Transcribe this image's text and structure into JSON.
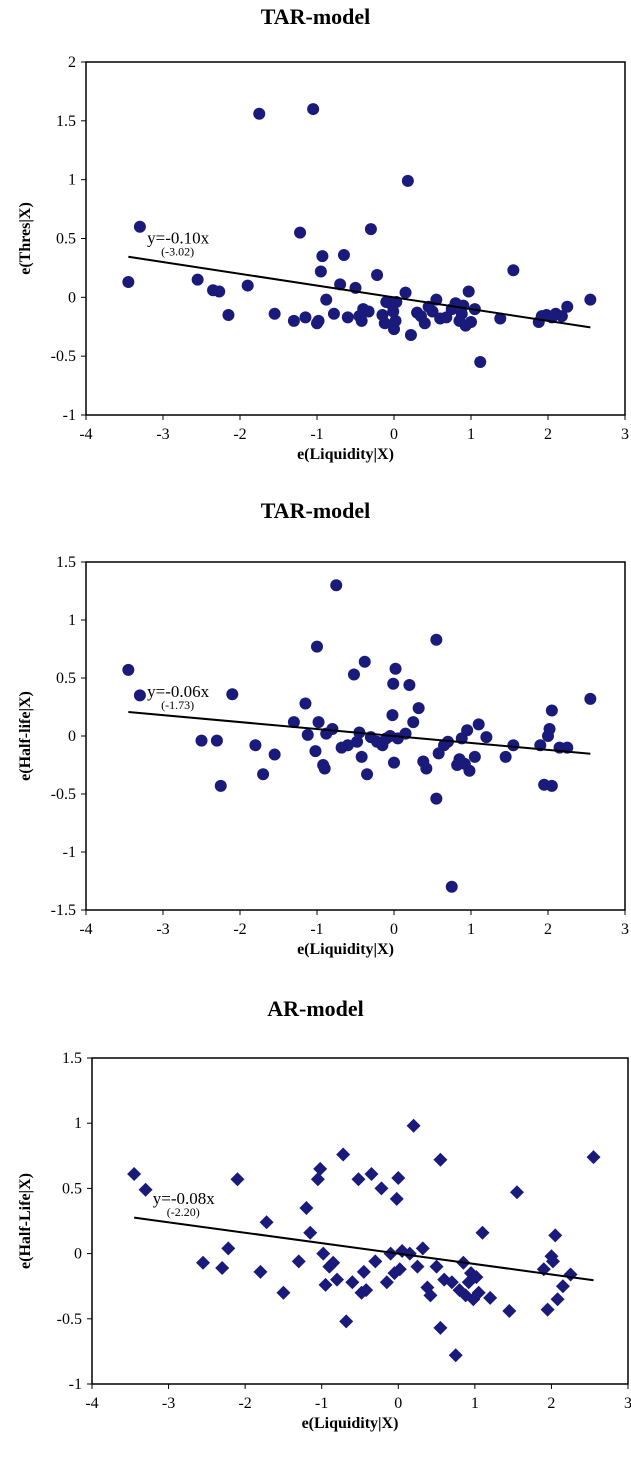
{
  "chart_data": [
    {
      "type": "scatter",
      "title": "TAR-model",
      "xlabel": "e(Liquidity|X)",
      "ylabel": "e(Thres|X)",
      "xlim": [
        -4,
        3
      ],
      "ylim": [
        -1,
        2
      ],
      "xticks": [
        "-4",
        "-3",
        "-2",
        "-1",
        "0",
        "1",
        "2",
        "3"
      ],
      "yticks": [
        "2",
        "1.5",
        "1",
        "0.5",
        "0",
        "-0.5",
        "-1"
      ],
      "marker": "circle",
      "marker_color": "#1a1a7a",
      "trendline": {
        "slope": -0.1,
        "x_from": -3.45,
        "x_to": 2.55,
        "equation": "y=-0.10x",
        "tstat": "(-3.02)"
      },
      "points": [
        [
          -3.45,
          0.13
        ],
        [
          -3.3,
          0.6
        ],
        [
          -2.55,
          0.15
        ],
        [
          -2.35,
          0.06
        ],
        [
          -2.27,
          0.05
        ],
        [
          -2.15,
          -0.15
        ],
        [
          -1.9,
          0.1
        ],
        [
          -1.75,
          1.56
        ],
        [
          -1.55,
          -0.14
        ],
        [
          -1.3,
          -0.2
        ],
        [
          -1.22,
          0.55
        ],
        [
          -1.15,
          -0.17
        ],
        [
          -1.05,
          1.6
        ],
        [
          -1.0,
          -0.22
        ],
        [
          -0.98,
          -0.2
        ],
        [
          -0.95,
          0.22
        ],
        [
          -0.93,
          0.35
        ],
        [
          -0.88,
          -0.02
        ],
        [
          -0.78,
          -0.14
        ],
        [
          -0.7,
          0.11
        ],
        [
          -0.65,
          0.36
        ],
        [
          -0.6,
          -0.17
        ],
        [
          -0.5,
          0.08
        ],
        [
          -0.45,
          -0.16
        ],
        [
          -0.42,
          -0.2
        ],
        [
          -0.4,
          -0.1
        ],
        [
          -0.33,
          -0.12
        ],
        [
          -0.3,
          0.58
        ],
        [
          -0.22,
          0.19
        ],
        [
          -0.15,
          -0.15
        ],
        [
          -0.12,
          -0.22
        ],
        [
          -0.1,
          -0.04
        ],
        [
          -0.05,
          -0.05
        ],
        [
          -0.01,
          -0.12
        ],
        [
          0.0,
          -0.27
        ],
        [
          0.02,
          -0.2
        ],
        [
          0.03,
          -0.04
        ],
        [
          0.15,
          0.04
        ],
        [
          0.18,
          0.99
        ],
        [
          0.22,
          -0.32
        ],
        [
          0.3,
          -0.13
        ],
        [
          0.35,
          -0.16
        ],
        [
          0.4,
          -0.22
        ],
        [
          0.45,
          -0.08
        ],
        [
          0.5,
          -0.12
        ],
        [
          0.55,
          -0.02
        ],
        [
          0.6,
          -0.18
        ],
        [
          0.68,
          -0.17
        ],
        [
          0.75,
          -0.1
        ],
        [
          0.8,
          -0.05
        ],
        [
          0.85,
          -0.2
        ],
        [
          0.88,
          -0.14
        ],
        [
          0.9,
          -0.07
        ],
        [
          0.93,
          -0.24
        ],
        [
          0.97,
          0.05
        ],
        [
          1.0,
          -0.21
        ],
        [
          1.05,
          -0.1
        ],
        [
          1.12,
          -0.55
        ],
        [
          1.38,
          -0.18
        ],
        [
          1.55,
          0.23
        ],
        [
          1.88,
          -0.21
        ],
        [
          1.92,
          -0.16
        ],
        [
          1.98,
          -0.15
        ],
        [
          2.05,
          -0.17
        ],
        [
          2.1,
          -0.14
        ],
        [
          2.18,
          -0.16
        ],
        [
          2.25,
          -0.08
        ],
        [
          2.55,
          -0.02
        ]
      ]
    },
    {
      "type": "scatter",
      "title": "TAR-model",
      "xlabel": "e(Liquidity|X)",
      "ylabel": "e(Half-life|X)",
      "xlim": [
        -4,
        3
      ],
      "ylim": [
        -1.5,
        1.5
      ],
      "xticks": [
        "-4",
        "-3",
        "-2",
        "-1",
        "0",
        "1",
        "2",
        "3"
      ],
      "yticks": [
        "1.5",
        "1",
        "0.5",
        "0",
        "-0.5",
        "-1",
        "-1.5"
      ],
      "marker": "circle",
      "marker_color": "#1a1a7a",
      "trendline": {
        "slope": -0.06,
        "x_from": -3.45,
        "x_to": 2.55,
        "equation": "y=-0.06x",
        "tstat": "(-1.73)"
      },
      "points": [
        [
          -3.45,
          0.57
        ],
        [
          -3.3,
          0.35
        ],
        [
          -2.5,
          -0.04
        ],
        [
          -2.3,
          -0.04
        ],
        [
          -2.25,
          -0.43
        ],
        [
          -2.1,
          0.36
        ],
        [
          -1.8,
          -0.08
        ],
        [
          -1.7,
          -0.33
        ],
        [
          -1.55,
          -0.16
        ],
        [
          -1.3,
          0.12
        ],
        [
          -1.15,
          0.28
        ],
        [
          -1.12,
          0.01
        ],
        [
          -1.02,
          -0.13
        ],
        [
          -1.0,
          0.77
        ],
        [
          -0.98,
          0.12
        ],
        [
          -0.92,
          -0.25
        ],
        [
          -0.9,
          -0.28
        ],
        [
          -0.88,
          0.02
        ],
        [
          -0.8,
          0.06
        ],
        [
          -0.75,
          1.3
        ],
        [
          -0.68,
          -0.1
        ],
        [
          -0.6,
          -0.08
        ],
        [
          -0.52,
          0.53
        ],
        [
          -0.48,
          -0.05
        ],
        [
          -0.45,
          0.03
        ],
        [
          -0.42,
          -0.18
        ],
        [
          -0.38,
          0.64
        ],
        [
          -0.35,
          -0.33
        ],
        [
          -0.3,
          -0.01
        ],
        [
          -0.22,
          -0.05
        ],
        [
          -0.15,
          -0.08
        ],
        [
          -0.1,
          -0.02
        ],
        [
          -0.05,
          0.0
        ],
        [
          -0.02,
          0.18
        ],
        [
          -0.01,
          0.45
        ],
        [
          0.0,
          -0.23
        ],
        [
          0.02,
          0.58
        ],
        [
          0.05,
          -0.02
        ],
        [
          0.15,
          0.02
        ],
        [
          0.2,
          0.44
        ],
        [
          0.25,
          0.12
        ],
        [
          0.32,
          0.24
        ],
        [
          0.38,
          -0.22
        ],
        [
          0.42,
          -0.28
        ],
        [
          0.55,
          0.83
        ],
        [
          0.55,
          -0.54
        ],
        [
          0.58,
          -0.15
        ],
        [
          0.65,
          -0.08
        ],
        [
          0.7,
          -0.05
        ],
        [
          0.75,
          -1.3
        ],
        [
          0.82,
          -0.25
        ],
        [
          0.85,
          -0.2
        ],
        [
          0.88,
          -0.02
        ],
        [
          0.92,
          -0.24
        ],
        [
          0.95,
          0.05
        ],
        [
          0.98,
          -0.3
        ],
        [
          1.05,
          -0.18
        ],
        [
          1.1,
          0.1
        ],
        [
          1.2,
          -0.01
        ],
        [
          1.45,
          -0.18
        ],
        [
          1.55,
          -0.08
        ],
        [
          1.9,
          -0.08
        ],
        [
          1.95,
          -0.42
        ],
        [
          2.0,
          0.0
        ],
        [
          2.02,
          0.06
        ],
        [
          2.05,
          -0.43
        ],
        [
          2.05,
          0.22
        ],
        [
          2.15,
          -0.1
        ],
        [
          2.25,
          -0.1
        ],
        [
          2.55,
          0.32
        ]
      ]
    },
    {
      "type": "scatter",
      "title": "AR-model",
      "xlabel": "e(Liquidity|X)",
      "ylabel": "e(Half-Life|X)",
      "xlim": [
        -4,
        3
      ],
      "ylim": [
        -1,
        1.5
      ],
      "xticks": [
        "-4",
        "-3",
        "-2",
        "-1",
        "0",
        "1",
        "2",
        "3"
      ],
      "yticks": [
        "1.5",
        "1",
        "0.5",
        "0",
        "-0.5",
        "-1"
      ],
      "marker": "diamond",
      "marker_color": "#1a1a7a",
      "trendline": {
        "slope": -0.08,
        "x_from": -3.45,
        "x_to": 2.55,
        "equation": "y=-0.08x",
        "tstat": "(-2.20)"
      },
      "points": [
        [
          -3.45,
          0.61
        ],
        [
          -3.3,
          0.49
        ],
        [
          -2.55,
          -0.07
        ],
        [
          -2.3,
          -0.11
        ],
        [
          -2.22,
          0.04
        ],
        [
          -2.1,
          0.57
        ],
        [
          -1.8,
          -0.14
        ],
        [
          -1.72,
          0.24
        ],
        [
          -1.5,
          -0.3
        ],
        [
          -1.3,
          -0.06
        ],
        [
          -1.2,
          0.35
        ],
        [
          -1.15,
          0.16
        ],
        [
          -1.05,
          0.57
        ],
        [
          -1.02,
          0.65
        ],
        [
          -0.98,
          0.0
        ],
        [
          -0.95,
          -0.24
        ],
        [
          -0.9,
          -0.1
        ],
        [
          -0.85,
          -0.07
        ],
        [
          -0.8,
          -0.2
        ],
        [
          -0.72,
          0.76
        ],
        [
          -0.68,
          -0.52
        ],
        [
          -0.6,
          -0.22
        ],
        [
          -0.52,
          0.57
        ],
        [
          -0.48,
          -0.3
        ],
        [
          -0.45,
          -0.14
        ],
        [
          -0.42,
          -0.28
        ],
        [
          -0.35,
          0.61
        ],
        [
          -0.3,
          -0.06
        ],
        [
          -0.22,
          0.5
        ],
        [
          -0.15,
          -0.22
        ],
        [
          -0.1,
          0.0
        ],
        [
          -0.05,
          -0.15
        ],
        [
          -0.02,
          0.42
        ],
        [
          0.0,
          0.58
        ],
        [
          0.02,
          -0.12
        ],
        [
          0.05,
          0.02
        ],
        [
          0.15,
          0.0
        ],
        [
          0.2,
          0.98
        ],
        [
          0.25,
          -0.1
        ],
        [
          0.32,
          0.04
        ],
        [
          0.38,
          -0.26
        ],
        [
          0.42,
          -0.32
        ],
        [
          0.5,
          -0.1
        ],
        [
          0.55,
          0.72
        ],
        [
          0.55,
          -0.57
        ],
        [
          0.6,
          -0.2
        ],
        [
          0.7,
          -0.22
        ],
        [
          0.75,
          -0.78
        ],
        [
          0.8,
          -0.28
        ],
        [
          0.85,
          -0.07
        ],
        [
          0.88,
          -0.32
        ],
        [
          0.92,
          -0.22
        ],
        [
          0.95,
          -0.15
        ],
        [
          0.98,
          -0.35
        ],
        [
          1.02,
          -0.18
        ],
        [
          1.05,
          -0.3
        ],
        [
          1.1,
          0.16
        ],
        [
          1.2,
          -0.34
        ],
        [
          1.45,
          -0.44
        ],
        [
          1.55,
          0.47
        ],
        [
          1.9,
          -0.12
        ],
        [
          1.95,
          -0.43
        ],
        [
          2.0,
          -0.02
        ],
        [
          2.02,
          -0.06
        ],
        [
          2.05,
          0.14
        ],
        [
          2.08,
          -0.35
        ],
        [
          2.15,
          -0.25
        ],
        [
          2.25,
          -0.16
        ],
        [
          2.55,
          0.74
        ]
      ]
    }
  ]
}
